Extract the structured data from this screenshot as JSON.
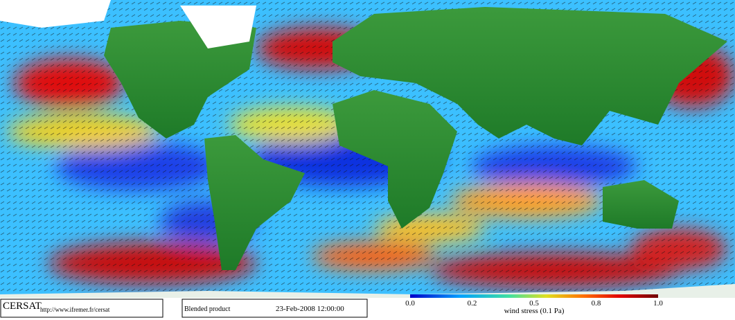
{
  "footer": {
    "logo": "CERSAT",
    "url": "http://www.ifremer.fr/cersat",
    "product": "Blended product",
    "datetime": "23-Feb-2008 12:00:00"
  },
  "colorbar": {
    "labels": [
      "0.0",
      "0.2",
      "0.5",
      "0.8",
      "1.0"
    ],
    "title": "wind stress (0.1 Pa)"
  }
}
